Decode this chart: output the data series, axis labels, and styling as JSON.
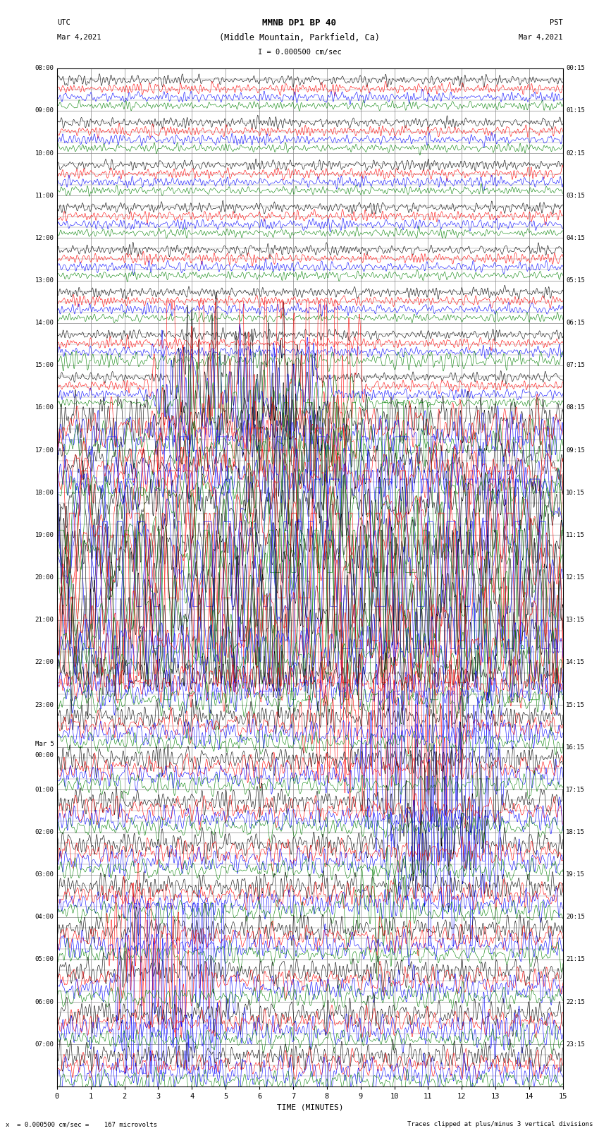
{
  "title_line1": "MMNB DP1 BP 40",
  "title_line2": "(Middle Mountain, Parkfield, Ca)",
  "scale_label": "I = 0.000500 cm/sec",
  "left_label": "UTC",
  "left_date": "Mar 4,2021",
  "right_label": "PST",
  "right_date": "Mar 4,2021",
  "xlabel": "TIME (MINUTES)",
  "bottom_left": "x  = 0.000500 cm/sec =    167 microvolts",
  "bottom_right": "Traces clipped at plus/minus 3 vertical divisions",
  "utc_times": [
    "08:00",
    "09:00",
    "10:00",
    "11:00",
    "12:00",
    "13:00",
    "14:00",
    "15:00",
    "16:00",
    "17:00",
    "18:00",
    "19:00",
    "20:00",
    "21:00",
    "22:00",
    "23:00",
    "Mar 5\n00:00",
    "01:00",
    "02:00",
    "03:00",
    "04:00",
    "05:00",
    "06:00",
    "07:00"
  ],
  "pst_times": [
    "00:15",
    "01:15",
    "02:15",
    "03:15",
    "04:15",
    "05:15",
    "06:15",
    "07:15",
    "08:15",
    "09:15",
    "10:15",
    "11:15",
    "12:15",
    "13:15",
    "14:15",
    "15:15",
    "16:15",
    "17:15",
    "18:15",
    "19:15",
    "20:15",
    "21:15",
    "22:15",
    "23:15"
  ],
  "colors": [
    "black",
    "red",
    "blue",
    "green"
  ],
  "bg_color": "white",
  "grid_color": "#888888",
  "num_rows": 24,
  "traces_per_row": 4,
  "minutes": 15,
  "figwidth": 8.5,
  "figheight": 16.13,
  "row_subdivisions": 4,
  "noise_quiet": 0.008,
  "noise_active": 0.025
}
